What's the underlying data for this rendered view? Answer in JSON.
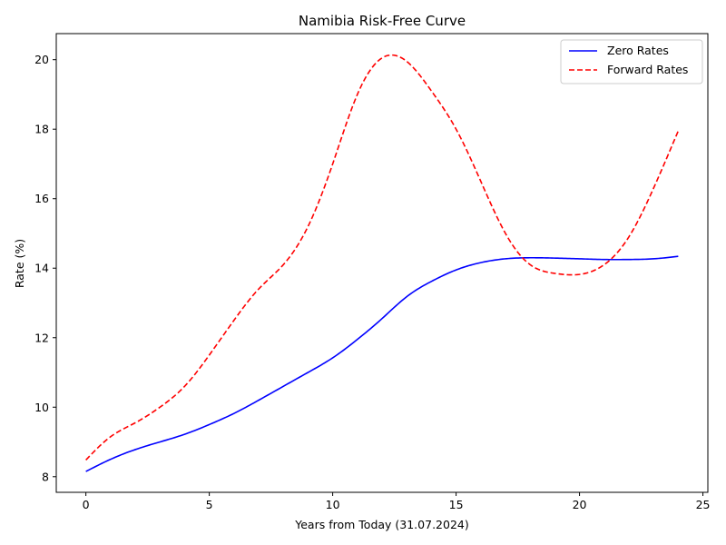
{
  "chart_data": {
    "type": "line",
    "title": "Namibia Risk-Free Curve",
    "xlabel": "Years from Today (31.07.2024)",
    "ylabel": "Rate (%)",
    "xlim": [
      -1.2,
      25.2
    ],
    "ylim": [
      7.55,
      20.75
    ],
    "xticks": [
      0,
      5,
      10,
      15,
      20,
      25
    ],
    "yticks": [
      8,
      10,
      12,
      14,
      16,
      18,
      20
    ],
    "grid": false,
    "legend_position": "top-right",
    "series": [
      {
        "name": "Zero Rates",
        "color": "#0000ff",
        "style": "solid",
        "x": [
          0,
          1,
          2,
          3,
          4,
          5,
          6,
          7,
          8,
          9,
          10,
          11,
          12,
          13,
          14,
          15,
          16,
          17,
          18,
          19,
          20,
          21,
          22,
          23,
          24
        ],
        "y": [
          8.15,
          8.5,
          8.78,
          9.0,
          9.22,
          9.5,
          9.82,
          10.2,
          10.6,
          11.0,
          11.42,
          11.95,
          12.55,
          13.18,
          13.62,
          13.95,
          14.16,
          14.27,
          14.3,
          14.29,
          14.27,
          14.25,
          14.25,
          14.27,
          14.34
        ]
      },
      {
        "name": "Forward Rates",
        "color": "#ff0000",
        "style": "dashed",
        "x": [
          0,
          1,
          2,
          3,
          4,
          5,
          6,
          7,
          8,
          9,
          10,
          11,
          12,
          13,
          14,
          15,
          16,
          17,
          18,
          19,
          20,
          21,
          22,
          23,
          24
        ],
        "y": [
          8.48,
          9.15,
          9.55,
          10.0,
          10.6,
          11.5,
          12.5,
          13.4,
          14.1,
          15.2,
          17.0,
          19.0,
          20.05,
          19.95,
          19.1,
          18.0,
          16.5,
          15.0,
          14.1,
          13.85,
          13.82,
          14.1,
          14.9,
          16.3,
          17.95
        ]
      }
    ]
  }
}
